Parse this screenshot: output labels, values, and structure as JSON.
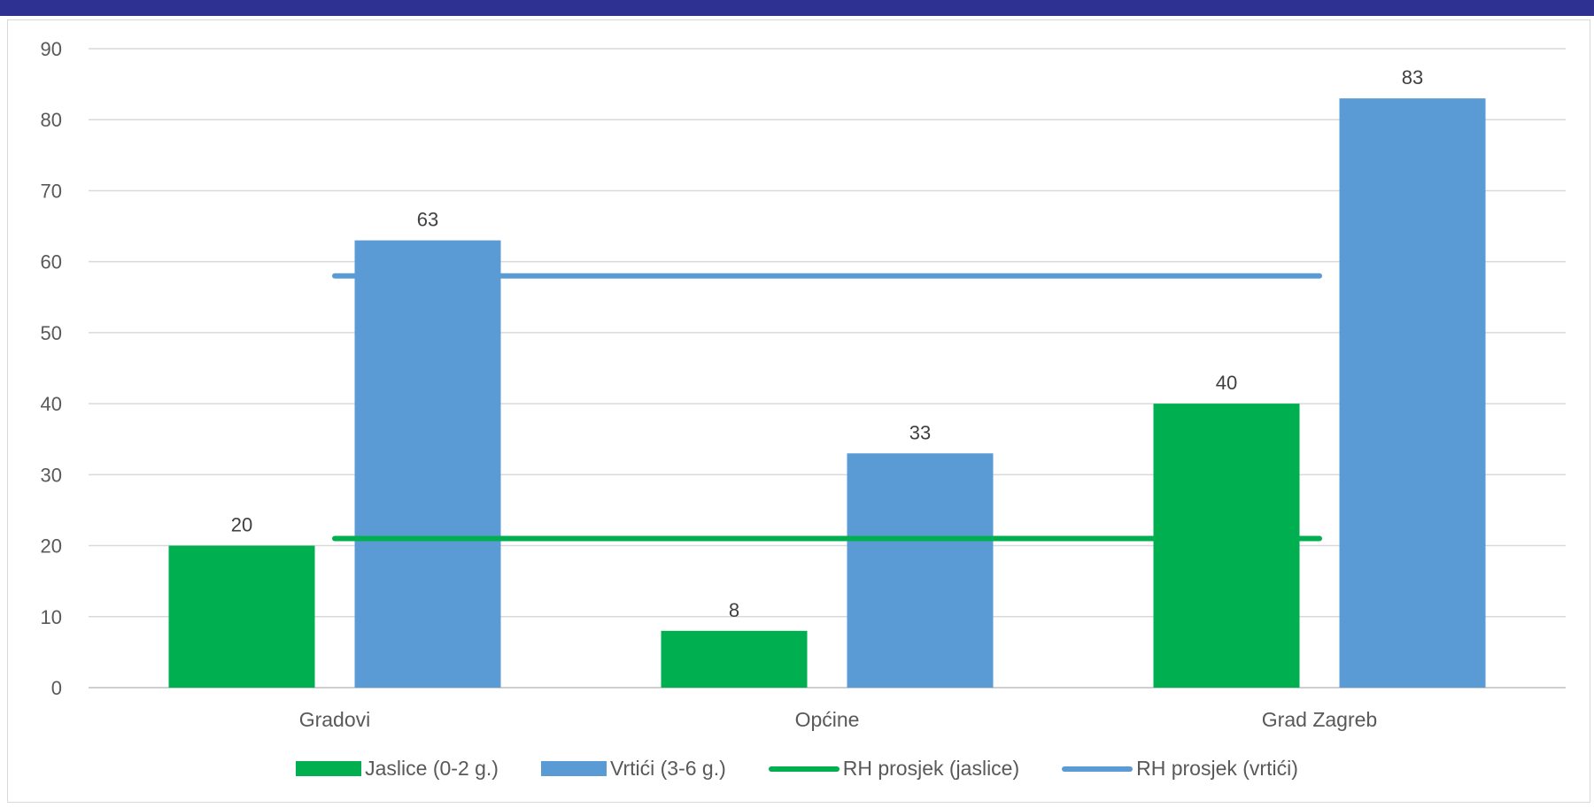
{
  "chart_data": {
    "type": "bar",
    "categories": [
      "Gradovi",
      "Općine",
      "Grad Zagreb"
    ],
    "series": [
      {
        "name": "Jaslice (0-2 g.)",
        "values": [
          20,
          8,
          40
        ],
        "color": "#00b050"
      },
      {
        "name": "Vrtići (3-6 g.)",
        "values": [
          63,
          33,
          83
        ],
        "color": "#5b9bd5"
      }
    ],
    "reference_lines": [
      {
        "name": "RH prosjek (jaslice)",
        "value": 21,
        "color": "#00b050"
      },
      {
        "name": "RH prosjek (vrtići)",
        "value": 58,
        "color": "#5b9bd5"
      }
    ],
    "data_labels": [
      [
        "20",
        "8",
        "40"
      ],
      [
        "63",
        "33",
        "83"
      ]
    ],
    "ylim": [
      0,
      90
    ],
    "yticks": [
      "0",
      "10",
      "20",
      "30",
      "40",
      "50",
      "60",
      "70",
      "80",
      "90"
    ],
    "grid": true,
    "legend_position": "bottom"
  }
}
